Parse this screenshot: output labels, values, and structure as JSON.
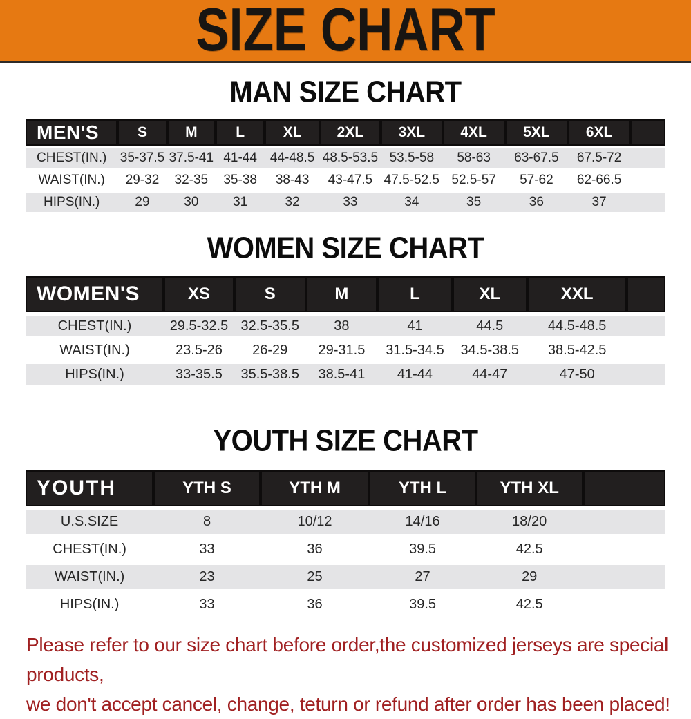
{
  "banner": {
    "title": "SIZE CHART"
  },
  "colors": {
    "banner_bg": "#e67912",
    "banner_text": "#181512",
    "header_bar_bg": "#221f1f",
    "header_bar_text": "#ffffff",
    "row_alt_bg": "#e4e4e6",
    "row_text": "#262626",
    "disclaimer_text": "#a02021"
  },
  "sections": [
    {
      "heading": "MAN SIZE CHART",
      "group_label": "MEN'S",
      "columns": [
        "S",
        "M",
        "L",
        "XL",
        "2XL",
        "3XL",
        "4XL",
        "5XL",
        "6XL"
      ],
      "rows": [
        {
          "label": "CHEST(IN.)",
          "values": [
            "35-37.5",
            "37.5-41",
            "41-44",
            "44-48.5",
            "48.5-53.5",
            "53.5-58",
            "58-63",
            "63-67.5",
            "67.5-72"
          ]
        },
        {
          "label": "WAIST(IN.)",
          "values": [
            "29-32",
            "32-35",
            "35-38",
            "38-43",
            "43-47.5",
            "47.5-52.5",
            "52.5-57",
            "57-62",
            "62-66.5"
          ]
        },
        {
          "label": "HIPS(IN.)",
          "values": [
            "29",
            "30",
            "31",
            "32",
            "33",
            "34",
            "35",
            "36",
            "37"
          ]
        }
      ]
    },
    {
      "heading": "WOMEN SIZE CHART",
      "group_label": "WOMEN'S",
      "columns": [
        "XS",
        "S",
        "M",
        "L",
        "XL",
        "XXL"
      ],
      "rows": [
        {
          "label": "CHEST(IN.)",
          "values": [
            "29.5-32.5",
            "32.5-35.5",
            "38",
            "41",
            "44.5",
            "44.5-48.5"
          ]
        },
        {
          "label": "WAIST(IN.)",
          "values": [
            "23.5-26",
            "26-29",
            "29-31.5",
            "31.5-34.5",
            "34.5-38.5",
            "38.5-42.5"
          ]
        },
        {
          "label": "HIPS(IN.)",
          "values": [
            "33-35.5",
            "35.5-38.5",
            "38.5-41",
            "41-44",
            "44-47",
            "47-50"
          ]
        }
      ]
    },
    {
      "heading": "YOUTH SIZE CHART",
      "group_label": "YOUTH",
      "columns": [
        "YTH S",
        "YTH M",
        "YTH L",
        "YTH XL"
      ],
      "rows": [
        {
          "label": "U.S.SIZE",
          "values": [
            "8",
            "10/12",
            "14/16",
            "18/20"
          ]
        },
        {
          "label": "CHEST(IN.)",
          "values": [
            "33",
            "36",
            "39.5",
            "42.5"
          ]
        },
        {
          "label": "WAIST(IN.)",
          "values": [
            "23",
            "25",
            "27",
            "29"
          ]
        },
        {
          "label": "HIPS(IN.)",
          "values": [
            "33",
            "36",
            "39.5",
            "42.5"
          ]
        }
      ]
    }
  ],
  "disclaimer": {
    "line1": "Please refer to our size chart before order,the customized jerseys are special products,",
    "line2": "we don't accept cancel, change, teturn or refund after order has been placed!"
  }
}
